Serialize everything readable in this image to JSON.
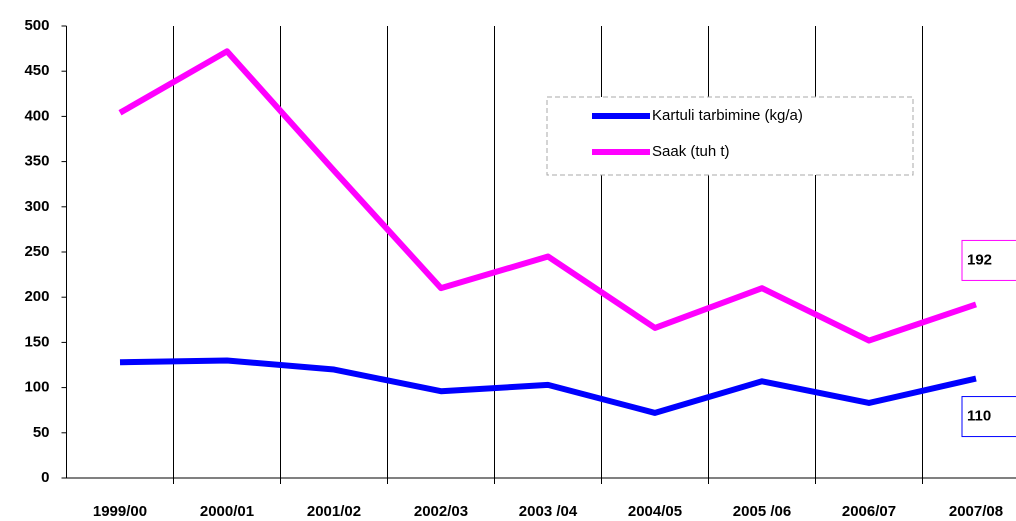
{
  "chart_data": {
    "type": "line",
    "categories": [
      "1999/00",
      "2000/01",
      "2001/02",
      "2002/03",
      "2003 /04",
      "2004/05",
      "2005 /06",
      "2006/07",
      "2007/08"
    ],
    "series": [
      {
        "name": "Kartuli tarbimine (kg/a)",
        "color": "#0000ff",
        "values": [
          128,
          130,
          120,
          96,
          103,
          72,
          107,
          83,
          110
        ]
      },
      {
        "name": "Saak (tuh t)",
        "color": "#ff00ff",
        "values": [
          404,
          472,
          340,
          210,
          245,
          166,
          210,
          152,
          192
        ]
      }
    ],
    "ylim": [
      0,
      500
    ],
    "yticks": [
      0,
      50,
      100,
      150,
      200,
      250,
      300,
      350,
      400,
      450,
      500
    ],
    "xgrid": true
  }
}
